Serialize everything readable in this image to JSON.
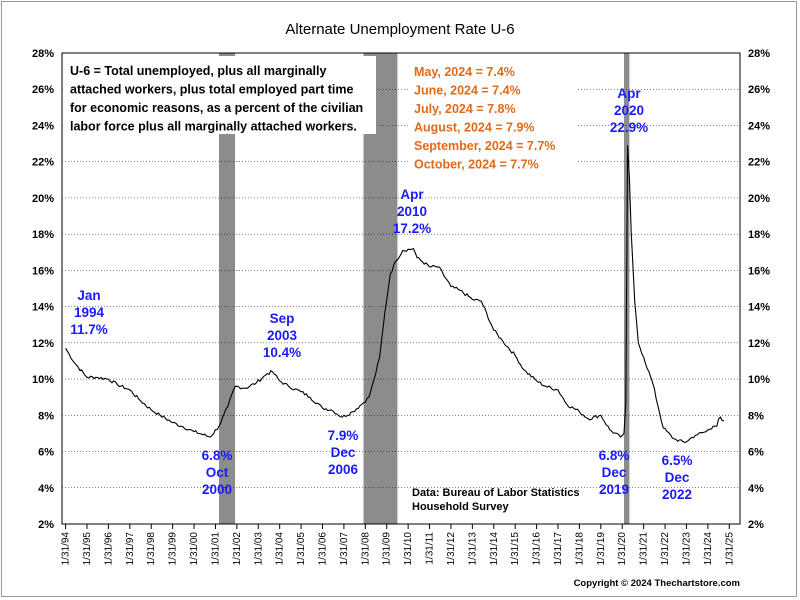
{
  "chart_data": {
    "type": "line",
    "title": "Alternate Unemployment Rate U-6",
    "xlabel": "",
    "ylabel": "",
    "ylim": [
      2,
      28
    ],
    "y_ticks": [
      "2%",
      "4%",
      "6%",
      "8%",
      "10%",
      "12%",
      "14%",
      "16%",
      "18%",
      "20%",
      "22%",
      "24%",
      "26%",
      "28%"
    ],
    "x_ticks": [
      "1/31/94",
      "1/31/95",
      "1/31/96",
      "1/31/97",
      "1/31/98",
      "1/31/99",
      "1/31/00",
      "1/31/01",
      "1/31/02",
      "1/31/03",
      "1/31/04",
      "1/31/05",
      "1/31/06",
      "1/31/07",
      "1/31/08",
      "1/31/09",
      "1/31/10",
      "1/31/11",
      "1/31/12",
      "1/31/13",
      "1/31/14",
      "1/31/15",
      "1/31/16",
      "1/31/17",
      "1/31/18",
      "1/31/19",
      "1/31/20",
      "1/31/21",
      "1/31/22",
      "1/31/23",
      "1/31/24",
      "1/31/25"
    ],
    "grid": true,
    "recessions": [
      {
        "start": "2001-03",
        "end": "2001-11"
      },
      {
        "start": "2007-12",
        "end": "2009-06"
      },
      {
        "start": "2020-02",
        "end": "2020-04"
      }
    ],
    "series": [
      {
        "name": "U-6",
        "color": "#000000",
        "points": [
          [
            "1994-01",
            11.7
          ],
          [
            "1994-06",
            10.9
          ],
          [
            "1995-01",
            10.1
          ],
          [
            "1995-06",
            10.1
          ],
          [
            "1996-01",
            10.0
          ],
          [
            "1996-06",
            9.7
          ],
          [
            "1997-01",
            9.4
          ],
          [
            "1997-06",
            8.9
          ],
          [
            "1998-01",
            8.3
          ],
          [
            "1998-06",
            8.0
          ],
          [
            "1999-01",
            7.6
          ],
          [
            "1999-06",
            7.4
          ],
          [
            "2000-01",
            7.1
          ],
          [
            "2000-10",
            6.8
          ],
          [
            "2001-03",
            7.4
          ],
          [
            "2001-08",
            8.5
          ],
          [
            "2001-12",
            9.6
          ],
          [
            "2002-06",
            9.5
          ],
          [
            "2002-12",
            9.8
          ],
          [
            "2003-06",
            10.3
          ],
          [
            "2003-09",
            10.4
          ],
          [
            "2004-01",
            9.9
          ],
          [
            "2004-06",
            9.6
          ],
          [
            "2005-01",
            9.3
          ],
          [
            "2005-06",
            9.0
          ],
          [
            "2006-01",
            8.4
          ],
          [
            "2006-06",
            8.3
          ],
          [
            "2006-12",
            7.9
          ],
          [
            "2007-06",
            8.2
          ],
          [
            "2007-12",
            8.7
          ],
          [
            "2008-03",
            9.0
          ],
          [
            "2008-06",
            10.0
          ],
          [
            "2008-09",
            11.2
          ],
          [
            "2008-12",
            13.7
          ],
          [
            "2009-03",
            15.8
          ],
          [
            "2009-06",
            16.5
          ],
          [
            "2009-10",
            17.1
          ],
          [
            "2010-04",
            17.2
          ],
          [
            "2010-06",
            16.7
          ],
          [
            "2011-01",
            16.2
          ],
          [
            "2011-06",
            16.2
          ],
          [
            "2012-01",
            15.1
          ],
          [
            "2012-06",
            14.9
          ],
          [
            "2013-01",
            14.4
          ],
          [
            "2013-06",
            14.3
          ],
          [
            "2014-01",
            12.7
          ],
          [
            "2014-06",
            12.1
          ],
          [
            "2015-01",
            11.3
          ],
          [
            "2015-06",
            10.5
          ],
          [
            "2016-01",
            9.9
          ],
          [
            "2016-06",
            9.6
          ],
          [
            "2017-01",
            9.4
          ],
          [
            "2017-06",
            8.6
          ],
          [
            "2018-01",
            8.2
          ],
          [
            "2018-06",
            7.8
          ],
          [
            "2019-01",
            8.0
          ],
          [
            "2019-06",
            7.2
          ],
          [
            "2019-12",
            6.8
          ],
          [
            "2020-02",
            7.0
          ],
          [
            "2020-03",
            8.7
          ],
          [
            "2020-04",
            22.9
          ],
          [
            "2020-05",
            21.1
          ],
          [
            "2020-06",
            18.1
          ],
          [
            "2020-08",
            14.3
          ],
          [
            "2020-10",
            12.0
          ],
          [
            "2021-01",
            11.2
          ],
          [
            "2021-06",
            9.8
          ],
          [
            "2021-12",
            7.3
          ],
          [
            "2022-06",
            6.7
          ],
          [
            "2022-12",
            6.5
          ],
          [
            "2023-06",
            6.9
          ],
          [
            "2023-12",
            7.1
          ],
          [
            "2024-04",
            7.4
          ],
          [
            "2024-05",
            7.4
          ],
          [
            "2024-06",
            7.4
          ],
          [
            "2024-07",
            7.8
          ],
          [
            "2024-08",
            7.9
          ],
          [
            "2024-09",
            7.7
          ],
          [
            "2024-10",
            7.7
          ]
        ]
      }
    ],
    "annotations": [
      {
        "lines": [
          "Jan",
          "1994",
          "11.7%"
        ]
      },
      {
        "lines": [
          "6.8%",
          "Oct",
          "2000"
        ]
      },
      {
        "lines": [
          "Sep",
          "2003",
          "10.4%"
        ]
      },
      {
        "lines": [
          "7.9%",
          "Dec",
          "2006"
        ]
      },
      {
        "lines": [
          "Apr",
          "2010",
          "17.2%"
        ]
      },
      {
        "lines": [
          "Apr",
          "2020",
          "22.9%"
        ]
      },
      {
        "lines": [
          "6.8%",
          "Dec",
          "2019"
        ]
      },
      {
        "lines": [
          "6.5%",
          "Dec",
          "2022"
        ]
      }
    ],
    "definition_note": [
      "U-6 = Total unemployed, plus all marginally",
      "attached workers, plus total employed part time",
      "for economic reasons, as a percent of the civilian",
      "labor force plus all marginally attached workers."
    ],
    "recent_values": [
      "May, 2024 = 7.4%",
      "June, 2024 = 7.4%",
      "July, 2024 = 7.8%",
      "August, 2024 = 7.9%",
      "September, 2024 = 7.7%",
      "October, 2024 = 7.7%"
    ],
    "source": [
      "Data:  Bureau of Labor Statistics",
      "Household Survey"
    ],
    "copyright": "Copyright © 2024 Thechartstore.com",
    "colors": {
      "annotation": "#1a1aff",
      "recent": "#e06a1b",
      "recession": "#8c8c8c",
      "line": "#000000"
    }
  }
}
